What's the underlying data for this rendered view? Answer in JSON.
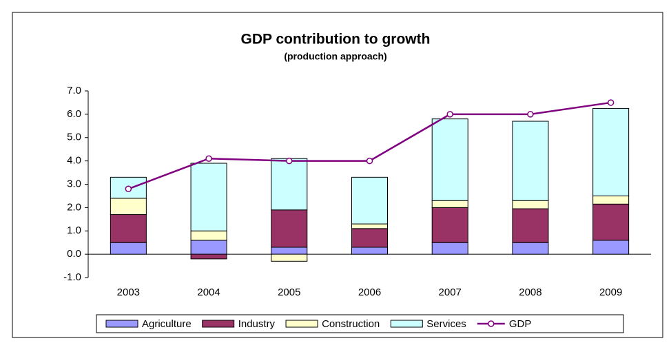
{
  "chart_data": {
    "type": "bar",
    "title": "GDP contribution to growth",
    "subtitle": "(production approach)",
    "categories": [
      "2003",
      "2004",
      "2005",
      "2006",
      "2007",
      "2008",
      "2009"
    ],
    "series": [
      {
        "name": "Agriculture",
        "color": "#9999ff",
        "values": [
          0.5,
          0.6,
          0.3,
          0.3,
          0.5,
          0.5,
          0.6
        ]
      },
      {
        "name": "Industry",
        "color": "#993366",
        "values": [
          1.2,
          -0.2,
          1.6,
          0.8,
          1.5,
          1.45,
          1.55
        ]
      },
      {
        "name": "Construction",
        "color": "#ffffcc",
        "values": [
          0.7,
          0.4,
          -0.3,
          0.2,
          0.3,
          0.35,
          0.35
        ]
      },
      {
        "name": "Services",
        "color": "#ccffff",
        "values": [
          0.9,
          2.9,
          2.2,
          2.0,
          3.5,
          3.4,
          3.75
        ]
      },
      {
        "name": "GDP",
        "color": "#800080",
        "type": "line",
        "values": [
          2.8,
          4.1,
          4.0,
          4.0,
          6.0,
          6.0,
          6.5
        ]
      }
    ],
    "ylim": [
      -1,
      7
    ],
    "yticks": [
      {
        "value": -1,
        "label": "-1.0"
      },
      {
        "value": 0,
        "label": "0.0"
      },
      {
        "value": 1,
        "label": "1.0"
      },
      {
        "value": 2,
        "label": "2.0"
      },
      {
        "value": 3,
        "label": "3.0"
      },
      {
        "value": 4,
        "label": "4.0"
      },
      {
        "value": 5,
        "label": "5.0"
      },
      {
        "value": 6,
        "label": "6.0"
      },
      {
        "value": 7,
        "label": "7.0"
      }
    ],
    "legend": "bottom"
  }
}
